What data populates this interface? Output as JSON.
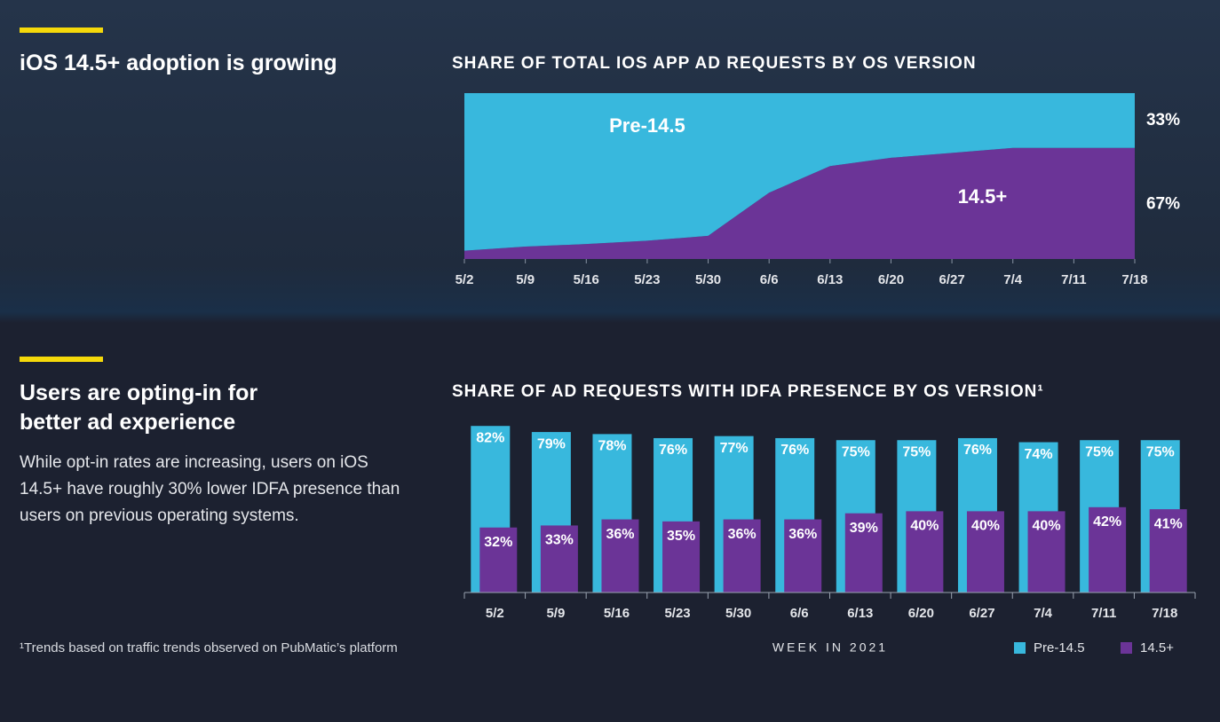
{
  "sections": [
    {
      "heading": "iOS 14.5+ adoption is growing"
    },
    {
      "heading": "Users are opting-in for better ad experience",
      "body": "While opt-in rates are increasing, users on iOS 14.5+ have roughly 30% lower IDFA presence than users on previous operating systems."
    }
  ],
  "footnote": "¹Trends based on traffic trends observed on PubMatic’s platform",
  "chart_data": [
    {
      "type": "area",
      "stacked": true,
      "title": "SHARE OF TOTAL IOS APP AD REQUESTS BY OS VERSION",
      "categories": [
        "5/2",
        "5/9",
        "5/16",
        "5/23",
        "5/30",
        "6/6",
        "6/13",
        "6/20",
        "6/27",
        "7/4",
        "7/11",
        "7/18"
      ],
      "ylim": [
        0,
        100
      ],
      "series": [
        {
          "name": "14.5+",
          "color": "#6b3497",
          "values": [
            5,
            7.5,
            9,
            11,
            14,
            40,
            56,
            61,
            64,
            67,
            67,
            67
          ],
          "value_labels": [
            null,
            null,
            null,
            null,
            null,
            null,
            null,
            null,
            null,
            null,
            null,
            "67%"
          ]
        },
        {
          "name": "Pre-14.5",
          "color": "#38b8dd",
          "values": [
            95,
            92.5,
            91,
            89,
            86,
            60,
            44,
            39,
            36,
            33,
            33,
            33
          ],
          "value_labels": [
            null,
            null,
            null,
            null,
            null,
            null,
            null,
            null,
            null,
            null,
            null,
            "33%"
          ]
        }
      ]
    },
    {
      "type": "bar",
      "title": "SHARE OF AD REQUESTS WITH IDFA PRESENCE BY OS VERSION¹",
      "x_label": "WEEK IN 2021",
      "categories": [
        "5/2",
        "5/9",
        "5/16",
        "5/23",
        "5/30",
        "6/6",
        "6/13",
        "6/20",
        "6/27",
        "7/4",
        "7/11",
        "7/18"
      ],
      "ylim": [
        0,
        100
      ],
      "legend": "bottom-right",
      "series": [
        {
          "name": "Pre-14.5",
          "color": "#38b8dd",
          "values": [
            82,
            79,
            78,
            76,
            77,
            76,
            75,
            75,
            76,
            74,
            75,
            75
          ],
          "value_labels": [
            "82%",
            "79%",
            "78%",
            "76%",
            "77%",
            "76%",
            "75%",
            "75%",
            "76%",
            "74%",
            "75%",
            "75%"
          ]
        },
        {
          "name": "14.5+",
          "color": "#6b3497",
          "values": [
            32,
            33,
            36,
            35,
            36,
            36,
            39,
            40,
            40,
            40,
            42,
            41
          ],
          "value_labels": [
            "32%",
            "33%",
            "36%",
            "35%",
            "36%",
            "36%",
            "39%",
            "40%",
            "40%",
            "40%",
            "42%",
            "41%"
          ]
        }
      ]
    }
  ]
}
